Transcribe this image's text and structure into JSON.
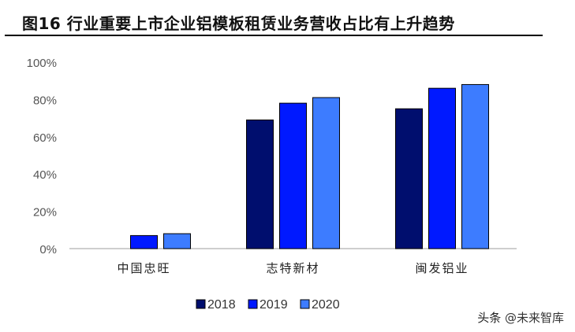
{
  "title": "图16 行业重要上市企业铝模板租赁业务营收占比有上升趋势",
  "watermark": {
    "prefix": "头条",
    "handle": "@未来智库"
  },
  "colors": {
    "s2018": "#000e6e",
    "s2019": "#0019ff",
    "s2020": "#3d7cff"
  },
  "chart_data": {
    "type": "bar",
    "categories": [
      "中国忠旺",
      "志特新材",
      "闽发铝业"
    ],
    "series": [
      {
        "name": "2018",
        "values": [
          0,
          69,
          75
        ]
      },
      {
        "name": "2019",
        "values": [
          7,
          78,
          86
        ]
      },
      {
        "name": "2020",
        "values": [
          8,
          81,
          88
        ]
      }
    ],
    "title": "",
    "xlabel": "",
    "ylabel": "",
    "ylim": [
      0,
      100
    ],
    "yticks": [
      "0%",
      "20%",
      "40%",
      "60%",
      "80%",
      "100%"
    ],
    "grid": false,
    "legend": "bottom"
  }
}
